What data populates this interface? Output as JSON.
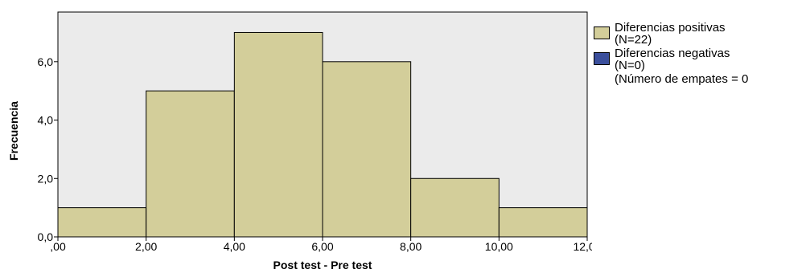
{
  "chart_data": {
    "type": "bar",
    "subtype": "histogram",
    "bins": [
      {
        "x0": 0,
        "x1": 2,
        "value": 1
      },
      {
        "x0": 2,
        "x1": 4,
        "value": 5
      },
      {
        "x0": 4,
        "x1": 6,
        "value": 7
      },
      {
        "x0": 6,
        "x1": 8,
        "value": 6
      },
      {
        "x0": 8,
        "x1": 10,
        "value": 2
      },
      {
        "x0": 10,
        "x1": 12,
        "value": 1
      }
    ],
    "xlabel": "Post test - Pre test",
    "ylabel": "Frecuencia",
    "xlim": [
      0,
      12
    ],
    "ylim": [
      0,
      7.7
    ],
    "x_ticks": [
      0,
      2,
      4,
      6,
      8,
      10,
      12
    ],
    "x_tick_labels": [
      ",00",
      "2,00",
      "4,00",
      "6,00",
      "8,00",
      "10,00",
      "12,00"
    ],
    "y_ticks": [
      0,
      2,
      4,
      6
    ],
    "y_tick_labels": [
      "0,0",
      "2,0",
      "4,0",
      "6,0"
    ],
    "grid": false,
    "plot_background": "#ebebeb",
    "bar_color": "#d3ce9a",
    "legend_position": "right",
    "legend": {
      "entries": [
        {
          "line1": "Diferencias positivas",
          "line2": "(N=22)",
          "color": "#d3ce9a"
        },
        {
          "line1": "Diferencias negativas",
          "line2": "(N=0)",
          "color": "#3b4f9c"
        }
      ],
      "note": "(Número de empates = 0"
    }
  }
}
